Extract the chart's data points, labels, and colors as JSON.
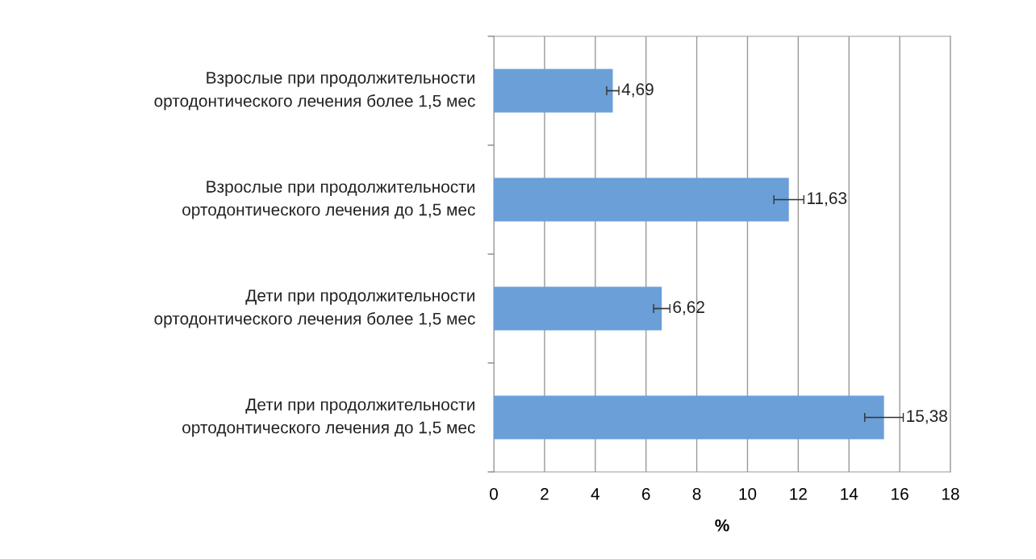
{
  "chart_data": {
    "type": "bar",
    "orientation": "horizontal",
    "xlabel": "%",
    "categories": [
      "Взрослые при продолжительности ортодонтического лечения более 1,5 мес",
      "Взрослые при продолжительности ортодонтического лечения до 1,5 мес",
      "Дети при продолжительности ортодонтического лечения более 1,5 мес",
      "Дети при продолжительности ортодонтического лечения до 1,5 мес"
    ],
    "values": [
      4.69,
      11.63,
      6.62,
      15.38
    ],
    "errors": [
      0.24,
      0.59,
      0.32,
      0.76
    ],
    "value_labels": [
      "4,69",
      "11,63",
      "6,62",
      "15,38"
    ],
    "color": "#6a9fd8",
    "xlim": [
      0,
      18
    ],
    "xticks": [
      0,
      2,
      4,
      6,
      8,
      10,
      12,
      14,
      16,
      18
    ],
    "grid": "x"
  }
}
